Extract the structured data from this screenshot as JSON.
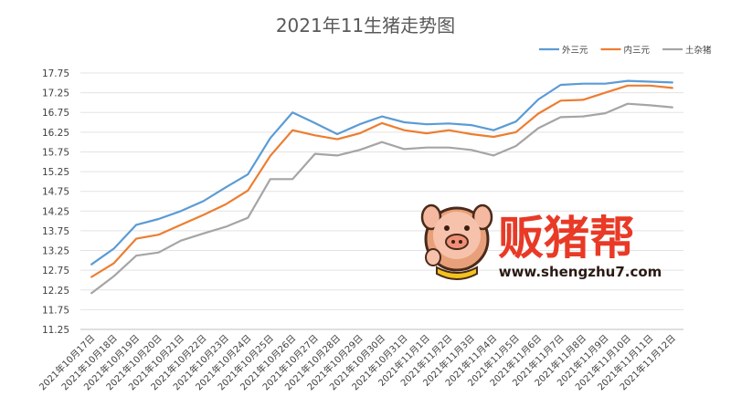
{
  "chart_data": {
    "type": "line",
    "title": "2021年11生猪走势图",
    "xlabel": "",
    "ylabel": "",
    "ylim": [
      11.25,
      17.75
    ],
    "yticks": [
      "11.25",
      "11.75",
      "12.25",
      "12.75",
      "13.25",
      "13.75",
      "14.25",
      "14.75",
      "15.25",
      "15.75",
      "16.25",
      "16.75",
      "17.25",
      "17.75"
    ],
    "grid": "horizontal",
    "legend_position": "top-right",
    "categories": [
      "2021年10月17日",
      "2021年10月18日",
      "2021年10月19日",
      "2021年10月20日",
      "2021年10月21日",
      "2021年10月22日",
      "2021年10月23日",
      "2021年10月24日",
      "2021年10月25日",
      "2021年10月26日",
      "2021年10月27日",
      "2021年10月28日",
      "2021年10月29日",
      "2021年10月30日",
      "2021年10月31日",
      "2021年11月1日",
      "2021年11月2日",
      "2021年11月3日",
      "2021年11月4日",
      "2021年11月5日",
      "2021年11月6日",
      "2021年11月7日",
      "2021年11月8日",
      "2021年11月9日",
      "2021年11月10日",
      "2021年11月11日",
      "2021年11月12日"
    ],
    "series": [
      {
        "name": "外三元",
        "color": "#5b9bd5",
        "values": [
          12.9,
          13.3,
          13.9,
          14.05,
          14.25,
          14.5,
          14.85,
          15.18,
          16.1,
          16.75,
          16.48,
          16.2,
          16.45,
          16.65,
          16.5,
          16.45,
          16.47,
          16.43,
          16.3,
          16.52,
          17.08,
          17.45,
          17.48,
          17.48,
          17.55,
          17.53,
          17.51
        ]
      },
      {
        "name": "内三元",
        "color": "#ed7d31",
        "values": [
          12.58,
          12.93,
          13.55,
          13.65,
          13.9,
          14.15,
          14.42,
          14.77,
          15.65,
          16.3,
          16.17,
          16.07,
          16.22,
          16.48,
          16.3,
          16.22,
          16.3,
          16.2,
          16.13,
          16.25,
          16.72,
          17.05,
          17.07,
          17.25,
          17.43,
          17.43,
          17.37
        ]
      },
      {
        "name": "土杂猪",
        "color": "#a5a5a5",
        "values": [
          12.17,
          12.6,
          13.12,
          13.2,
          13.5,
          13.68,
          13.85,
          14.08,
          15.06,
          15.06,
          15.7,
          15.66,
          15.8,
          16.0,
          15.82,
          15.86,
          15.86,
          15.8,
          15.66,
          15.9,
          16.35,
          16.63,
          16.65,
          16.73,
          16.97,
          16.93,
          16.88
        ]
      }
    ]
  },
  "watermark": {
    "brand": "贩猪帮",
    "url": "www.shengzhu7.com",
    "brand_color": "#e83a26"
  }
}
